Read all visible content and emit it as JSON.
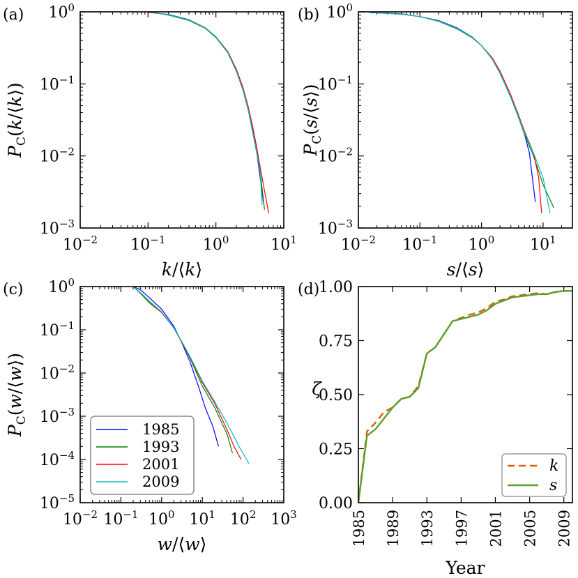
{
  "legend": {
    "entries": [
      {
        "label": "1985",
        "color": "#0000ff"
      },
      {
        "label": "1993",
        "color": "#008000"
      },
      {
        "label": "2001",
        "color": "#ff0000"
      },
      {
        "label": "2009",
        "color": "#00bfbf"
      }
    ]
  },
  "chart_data": [
    {
      "panel": "(a)",
      "type": "line",
      "scale": "log-log",
      "ylabel": "P_C(k/⟨k⟩)",
      "xlabel": "k/⟨k⟩",
      "xlim": [
        0.01,
        10
      ],
      "ylim": [
        0.001,
        1
      ],
      "xticks": [
        0.01,
        0.1,
        1,
        10
      ],
      "xtick_labels": [
        "10^-2",
        "10^-1",
        "10^0",
        "10^1"
      ],
      "yticks": [
        0.001,
        0.01,
        0.1,
        1
      ],
      "ytick_labels": [
        "10^-3",
        "10^-2",
        "10^-1",
        "10^0"
      ],
      "series": [
        {
          "name": "1985",
          "x": [
            0.1,
            0.2,
            0.4,
            0.7,
            1.0,
            1.5,
            2.0,
            2.5,
            3.0,
            3.5,
            4.0,
            4.5,
            5.0
          ],
          "y": [
            0.99,
            0.92,
            0.78,
            0.6,
            0.45,
            0.27,
            0.15,
            0.085,
            0.045,
            0.022,
            0.011,
            0.005,
            0.0023
          ]
        },
        {
          "name": "1993",
          "x": [
            0.12,
            0.2,
            0.4,
            0.7,
            1.0,
            1.5,
            2.0,
            2.5,
            3.0,
            3.5,
            4.0,
            4.5,
            5.2
          ],
          "y": [
            0.98,
            0.9,
            0.76,
            0.59,
            0.44,
            0.27,
            0.15,
            0.082,
            0.043,
            0.021,
            0.011,
            0.006,
            0.0018
          ]
        },
        {
          "name": "2001",
          "x": [
            0.1,
            0.2,
            0.4,
            0.7,
            1.0,
            1.5,
            2.0,
            2.5,
            3.0,
            3.5,
            4.0,
            4.5,
            5.0,
            5.5,
            6.0
          ],
          "y": [
            0.99,
            0.91,
            0.77,
            0.6,
            0.45,
            0.28,
            0.16,
            0.09,
            0.048,
            0.025,
            0.013,
            0.007,
            0.004,
            0.0025,
            0.0016
          ]
        },
        {
          "name": "2009",
          "x": [
            0.11,
            0.2,
            0.4,
            0.7,
            1.0,
            1.5,
            2.0,
            2.5,
            3.0,
            3.5,
            4.0,
            4.5,
            4.8
          ],
          "y": [
            0.99,
            0.91,
            0.77,
            0.6,
            0.45,
            0.27,
            0.15,
            0.083,
            0.044,
            0.021,
            0.011,
            0.006,
            0.0021
          ]
        }
      ]
    },
    {
      "panel": "(b)",
      "type": "line",
      "scale": "log-log",
      "ylabel": "P_C(s/⟨s⟩)",
      "xlabel": "s/⟨s⟩",
      "xlim": [
        0.01,
        30
      ],
      "ylim": [
        0.001,
        1
      ],
      "xticks": [
        0.01,
        0.1,
        1,
        10
      ],
      "xtick_labels": [
        "10^-2",
        "10^-1",
        "10^0",
        "10^1"
      ],
      "yticks": [
        0.001,
        0.01,
        0.1,
        1
      ],
      "ytick_labels": [
        "10^-3",
        "10^-2",
        "10^-1",
        "10^0"
      ],
      "series": [
        {
          "name": "1985",
          "x": [
            0.015,
            0.05,
            0.1,
            0.2,
            0.4,
            0.7,
            1.0,
            1.5,
            2.0,
            3.0,
            4.0,
            5.0,
            6.0,
            7.5
          ],
          "y": [
            0.98,
            0.94,
            0.86,
            0.76,
            0.6,
            0.45,
            0.34,
            0.22,
            0.14,
            0.065,
            0.035,
            0.02,
            0.011,
            0.0023
          ]
        },
        {
          "name": "1993",
          "x": [
            0.015,
            0.05,
            0.1,
            0.2,
            0.4,
            0.7,
            1.0,
            1.5,
            2.0,
            3.0,
            4.0,
            5.0,
            7.0,
            10.0,
            15.0
          ],
          "y": [
            0.98,
            0.93,
            0.86,
            0.74,
            0.58,
            0.44,
            0.34,
            0.22,
            0.14,
            0.065,
            0.034,
            0.02,
            0.01,
            0.004,
            0.0019
          ]
        },
        {
          "name": "2001",
          "x": [
            0.015,
            0.05,
            0.1,
            0.2,
            0.4,
            0.7,
            1.0,
            1.5,
            2.0,
            3.0,
            4.0,
            5.0,
            7.0,
            8.5,
            9.5
          ],
          "y": [
            0.98,
            0.93,
            0.86,
            0.75,
            0.59,
            0.45,
            0.34,
            0.23,
            0.15,
            0.07,
            0.037,
            0.022,
            0.011,
            0.005,
            0.0016
          ]
        },
        {
          "name": "2009",
          "x": [
            0.015,
            0.05,
            0.1,
            0.2,
            0.4,
            0.7,
            1.0,
            1.5,
            2.0,
            3.0,
            4.0,
            5.0,
            7.0,
            10.0,
            13.0
          ],
          "y": [
            0.98,
            0.93,
            0.86,
            0.75,
            0.59,
            0.45,
            0.34,
            0.22,
            0.14,
            0.066,
            0.035,
            0.021,
            0.011,
            0.005,
            0.0016
          ]
        }
      ]
    },
    {
      "panel": "(c)",
      "type": "line",
      "scale": "log-log",
      "ylabel": "P_C(w/⟨w⟩)",
      "xlabel": "w/⟨w⟩",
      "xlim": [
        0.01,
        1000
      ],
      "ylim": [
        1e-05,
        1
      ],
      "xticks": [
        0.01,
        0.1,
        1,
        10,
        100,
        1000
      ],
      "xtick_labels": [
        "10^-2",
        "10^-1",
        "10^0",
        "10^1",
        "10^2",
        "10^3"
      ],
      "yticks": [
        1e-05,
        0.0001,
        0.001,
        0.01,
        0.1,
        1
      ],
      "ytick_labels": [
        "10^-5",
        "10^-4",
        "10^-3",
        "10^-2",
        "10^-1",
        "10^0"
      ],
      "series": [
        {
          "name": "1985",
          "x": [
            0.2,
            0.3,
            0.5,
            1.0,
            2.0,
            3.0,
            5.0,
            8.0,
            12.0,
            18.0,
            25.0
          ],
          "y": [
            1.0,
            0.85,
            0.55,
            0.3,
            0.12,
            0.055,
            0.018,
            0.005,
            0.0015,
            0.0006,
            0.0002
          ]
        },
        {
          "name": "1993",
          "x": [
            0.2,
            0.3,
            0.5,
            1.0,
            2.0,
            3.0,
            5.0,
            10.0,
            20.0,
            30.0,
            40.0,
            55.0
          ],
          "y": [
            1.0,
            0.7,
            0.42,
            0.25,
            0.11,
            0.055,
            0.022,
            0.005,
            0.0016,
            0.0007,
            0.0004,
            0.00014
          ]
        },
        {
          "name": "2001",
          "x": [
            0.2,
            0.3,
            0.5,
            1.0,
            2.0,
            3.0,
            5.0,
            10.0,
            20.0,
            40.0,
            60.0,
            90.0
          ],
          "y": [
            1.0,
            0.72,
            0.45,
            0.25,
            0.11,
            0.056,
            0.023,
            0.006,
            0.002,
            0.0005,
            0.0002,
            0.0001
          ]
        },
        {
          "name": "2009",
          "x": [
            0.2,
            0.3,
            0.5,
            1.0,
            2.0,
            3.0,
            5.0,
            10.0,
            20.0,
            40.0,
            80.0,
            140.0
          ],
          "y": [
            1.0,
            0.73,
            0.46,
            0.26,
            0.11,
            0.057,
            0.024,
            0.0065,
            0.0022,
            0.0007,
            0.0002,
            8e-05
          ]
        }
      ]
    },
    {
      "panel": "(d)",
      "type": "line",
      "scale": "linear",
      "ylabel": "ζ",
      "xlabel": "Year",
      "xlim": [
        1985,
        2010
      ],
      "ylim": [
        0,
        1
      ],
      "xticks": [
        1985,
        1989,
        1993,
        1997,
        2001,
        2005,
        2009
      ],
      "yticks": [
        0.0,
        0.25,
        0.5,
        0.75,
        1.0
      ],
      "ytick_labels": [
        "0.00",
        "0.25",
        "0.50",
        "0.75",
        "1.00"
      ],
      "legend": [
        {
          "label": "k",
          "color": "#d95f02",
          "style": "dashed"
        },
        {
          "label": "s",
          "color": "#5aa02c",
          "style": "solid"
        }
      ],
      "series": [
        {
          "name": "k",
          "x": [
            1985,
            1986,
            1987,
            1988,
            1989,
            1990,
            1991,
            1992,
            1993,
            1994,
            1995,
            1996,
            1997,
            1998,
            1999,
            2000,
            2001,
            2002,
            2003,
            2004,
            2005,
            2006,
            2007,
            2008,
            2009,
            2010
          ],
          "y": [
            0.0,
            0.33,
            0.37,
            0.42,
            0.44,
            0.48,
            0.49,
            0.54,
            0.69,
            0.72,
            0.78,
            0.84,
            0.855,
            0.87,
            0.88,
            0.9,
            0.93,
            0.94,
            0.955,
            0.96,
            0.965,
            0.97,
            0.965,
            0.975,
            0.98,
            0.98
          ]
        },
        {
          "name": "s",
          "x": [
            1985,
            1986,
            1987,
            1988,
            1989,
            1990,
            1991,
            1992,
            1993,
            1994,
            1995,
            1996,
            1997,
            1998,
            1999,
            2000,
            2001,
            2002,
            2003,
            2004,
            2005,
            2006,
            2007,
            2008,
            2009,
            2010
          ],
          "y": [
            0.0,
            0.31,
            0.34,
            0.39,
            0.44,
            0.48,
            0.49,
            0.53,
            0.69,
            0.72,
            0.78,
            0.84,
            0.85,
            0.86,
            0.87,
            0.89,
            0.92,
            0.935,
            0.95,
            0.955,
            0.96,
            0.965,
            0.965,
            0.975,
            0.98,
            0.98
          ]
        }
      ]
    }
  ]
}
